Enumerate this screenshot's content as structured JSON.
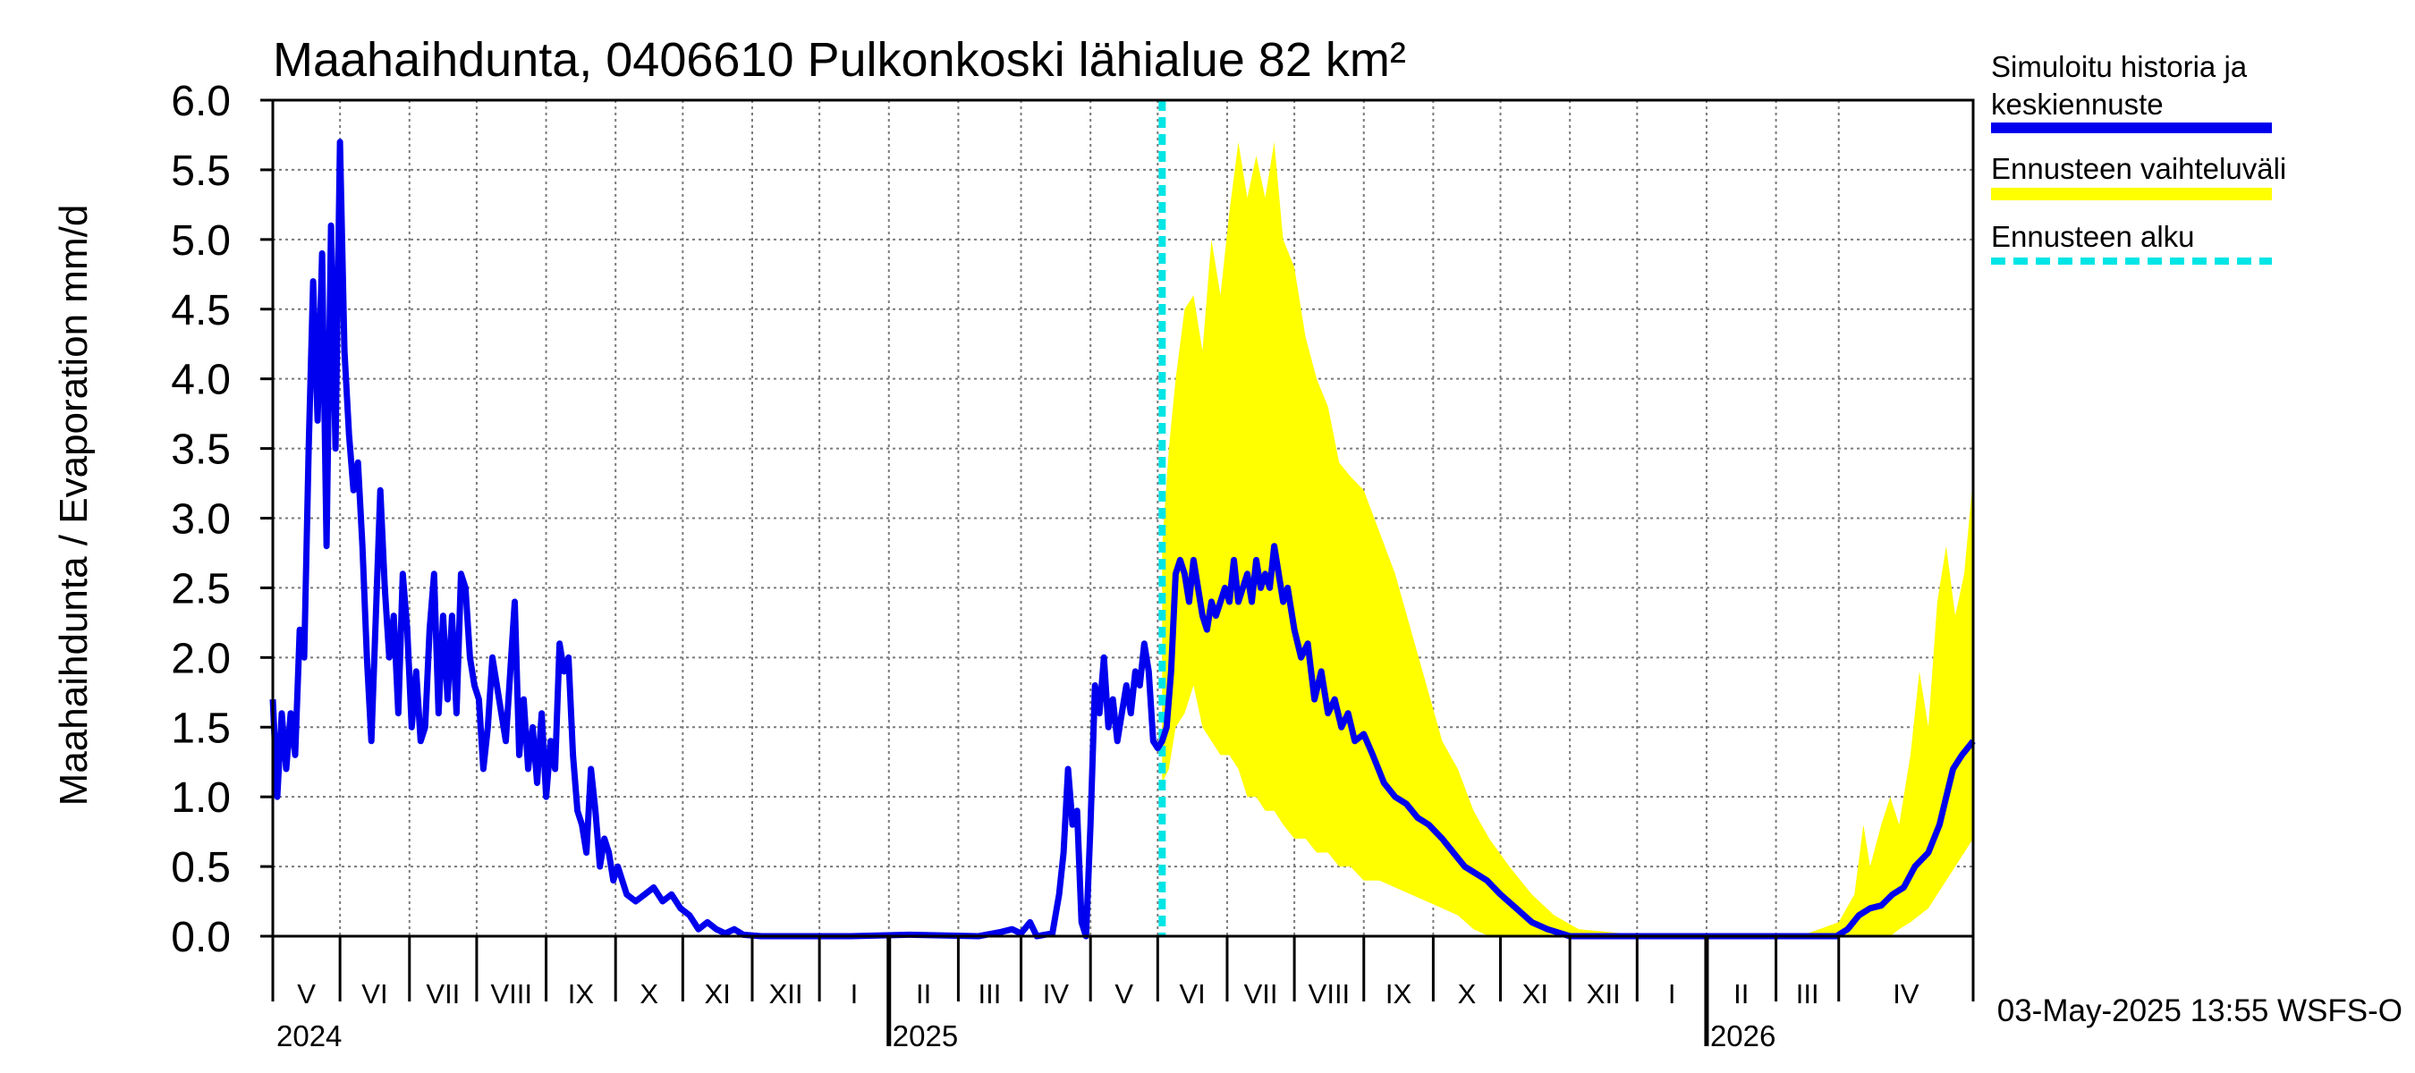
{
  "chart_data": {
    "type": "line",
    "title": "Maahaihdunta, 0406610 Pulkonkoski lähialue 82 km²",
    "ylabel": "Maahaihdunta / Evaporation   mm/d",
    "ylim": [
      0,
      6
    ],
    "yticks": [
      "0.0",
      "0.5",
      "1.0",
      "1.5",
      "2.0",
      "2.5",
      "3.0",
      "3.5",
      "4.0",
      "4.5",
      "5.0",
      "5.5",
      "6.0"
    ],
    "xlim": [
      "2024-04-01",
      "2026-04-30"
    ],
    "months": [
      "V",
      "VI",
      "VII",
      "VIII",
      "IX",
      "X",
      "XI",
      "XII",
      "I",
      "II",
      "III",
      "IV",
      "V",
      "VI",
      "VII",
      "VIII",
      "IX",
      "X",
      "XI",
      "XII",
      "I",
      "II",
      "III",
      "IV"
    ],
    "years": [
      "2024",
      "2025",
      "2026"
    ],
    "grid": true,
    "legend_placement": "right",
    "forecast_start": "2025-05-03",
    "series": [
      {
        "name": "Simuloitu historia ja keskiennuste",
        "color": "#0000ee",
        "points": [
          [
            "2024-04-01",
            1.7
          ],
          [
            "2024-04-03",
            1.0
          ],
          [
            "2024-04-05",
            1.6
          ],
          [
            "2024-04-07",
            1.2
          ],
          [
            "2024-04-09",
            1.6
          ],
          [
            "2024-04-11",
            1.3
          ],
          [
            "2024-04-13",
            2.2
          ],
          [
            "2024-04-15",
            2.0
          ],
          [
            "2024-04-17",
            3.5
          ],
          [
            "2024-04-19",
            4.7
          ],
          [
            "2024-04-21",
            3.7
          ],
          [
            "2024-04-23",
            4.9
          ],
          [
            "2024-04-25",
            2.8
          ],
          [
            "2024-04-27",
            5.1
          ],
          [
            "2024-04-29",
            3.5
          ],
          [
            "2024-05-01",
            5.7
          ],
          [
            "2024-05-03",
            4.2
          ],
          [
            "2024-05-05",
            3.6
          ],
          [
            "2024-05-07",
            3.2
          ],
          [
            "2024-05-09",
            3.4
          ],
          [
            "2024-05-11",
            2.8
          ],
          [
            "2024-05-13",
            2.0
          ],
          [
            "2024-05-15",
            1.4
          ],
          [
            "2024-05-17",
            2.3
          ],
          [
            "2024-05-19",
            3.2
          ],
          [
            "2024-05-21",
            2.5
          ],
          [
            "2024-05-23",
            2.0
          ],
          [
            "2024-05-25",
            2.3
          ],
          [
            "2024-05-27",
            1.6
          ],
          [
            "2024-05-29",
            2.6
          ],
          [
            "2024-05-31",
            2.2
          ],
          [
            "2024-06-02",
            1.5
          ],
          [
            "2024-06-04",
            1.9
          ],
          [
            "2024-06-06",
            1.4
          ],
          [
            "2024-06-08",
            1.5
          ],
          [
            "2024-06-10",
            2.2
          ],
          [
            "2024-06-12",
            2.6
          ],
          [
            "2024-06-14",
            1.6
          ],
          [
            "2024-06-16",
            2.3
          ],
          [
            "2024-06-18",
            1.7
          ],
          [
            "2024-06-20",
            2.3
          ],
          [
            "2024-06-22",
            1.6
          ],
          [
            "2024-06-24",
            2.6
          ],
          [
            "2024-06-26",
            2.5
          ],
          [
            "2024-06-28",
            2.0
          ],
          [
            "2024-06-30",
            1.8
          ],
          [
            "2024-07-02",
            1.7
          ],
          [
            "2024-07-04",
            1.2
          ],
          [
            "2024-07-06",
            1.5
          ],
          [
            "2024-07-08",
            2.0
          ],
          [
            "2024-07-10",
            1.8
          ],
          [
            "2024-07-12",
            1.6
          ],
          [
            "2024-07-14",
            1.4
          ],
          [
            "2024-07-16",
            1.9
          ],
          [
            "2024-07-18",
            2.4
          ],
          [
            "2024-07-20",
            1.3
          ],
          [
            "2024-07-22",
            1.7
          ],
          [
            "2024-07-24",
            1.2
          ],
          [
            "2024-07-26",
            1.5
          ],
          [
            "2024-07-28",
            1.1
          ],
          [
            "2024-07-30",
            1.6
          ],
          [
            "2024-08-01",
            1.0
          ],
          [
            "2024-08-03",
            1.4
          ],
          [
            "2024-08-05",
            1.2
          ],
          [
            "2024-08-07",
            2.1
          ],
          [
            "2024-08-09",
            1.9
          ],
          [
            "2024-08-11",
            2.0
          ],
          [
            "2024-08-13",
            1.3
          ],
          [
            "2024-08-15",
            0.9
          ],
          [
            "2024-08-17",
            0.8
          ],
          [
            "2024-08-19",
            0.6
          ],
          [
            "2024-08-21",
            1.2
          ],
          [
            "2024-08-23",
            0.9
          ],
          [
            "2024-08-25",
            0.5
          ],
          [
            "2024-08-27",
            0.7
          ],
          [
            "2024-08-29",
            0.6
          ],
          [
            "2024-08-31",
            0.4
          ],
          [
            "2024-09-02",
            0.5
          ],
          [
            "2024-09-06",
            0.3
          ],
          [
            "2024-09-10",
            0.25
          ],
          [
            "2024-09-14",
            0.3
          ],
          [
            "2024-09-18",
            0.35
          ],
          [
            "2024-09-22",
            0.25
          ],
          [
            "2024-09-26",
            0.3
          ],
          [
            "2024-09-30",
            0.2
          ],
          [
            "2024-10-04",
            0.15
          ],
          [
            "2024-10-08",
            0.05
          ],
          [
            "2024-10-12",
            0.1
          ],
          [
            "2024-10-16",
            0.05
          ],
          [
            "2024-10-20",
            0.02
          ],
          [
            "2024-10-24",
            0.05
          ],
          [
            "2024-10-28",
            0.01
          ],
          [
            "2024-11-05",
            0.0
          ],
          [
            "2024-12-15",
            0.0
          ],
          [
            "2025-01-10",
            0.01
          ],
          [
            "2025-02-10",
            0.0
          ],
          [
            "2025-02-20",
            0.03
          ],
          [
            "2025-02-25",
            0.05
          ],
          [
            "2025-03-01",
            0.02
          ],
          [
            "2025-03-05",
            0.1
          ],
          [
            "2025-03-08",
            0.0
          ],
          [
            "2025-03-15",
            0.02
          ],
          [
            "2025-03-18",
            0.3
          ],
          [
            "2025-03-20",
            0.6
          ],
          [
            "2025-03-22",
            1.2
          ],
          [
            "2025-03-24",
            0.8
          ],
          [
            "2025-03-26",
            0.9
          ],
          [
            "2025-03-28",
            0.1
          ],
          [
            "2025-03-30",
            0.0
          ],
          [
            "2025-04-01",
            0.8
          ],
          [
            "2025-04-03",
            1.8
          ],
          [
            "2025-04-05",
            1.6
          ],
          [
            "2025-04-07",
            2.0
          ],
          [
            "2025-04-09",
            1.5
          ],
          [
            "2025-04-11",
            1.7
          ],
          [
            "2025-04-13",
            1.4
          ],
          [
            "2025-04-15",
            1.6
          ],
          [
            "2025-04-17",
            1.8
          ],
          [
            "2025-04-19",
            1.6
          ],
          [
            "2025-04-21",
            1.9
          ],
          [
            "2025-04-23",
            1.8
          ],
          [
            "2025-04-25",
            2.1
          ],
          [
            "2025-04-27",
            1.9
          ],
          [
            "2025-04-29",
            1.4
          ],
          [
            "2025-05-01",
            1.35
          ],
          [
            "2025-05-03",
            1.4
          ],
          [
            "2025-05-05",
            1.5
          ],
          [
            "2025-05-07",
            1.9
          ],
          [
            "2025-05-09",
            2.6
          ],
          [
            "2025-05-11",
            2.7
          ],
          [
            "2025-05-13",
            2.6
          ],
          [
            "2025-05-15",
            2.4
          ],
          [
            "2025-05-17",
            2.7
          ],
          [
            "2025-05-19",
            2.5
          ],
          [
            "2025-05-21",
            2.3
          ],
          [
            "2025-05-23",
            2.2
          ],
          [
            "2025-05-25",
            2.4
          ],
          [
            "2025-05-27",
            2.3
          ],
          [
            "2025-05-29",
            2.4
          ],
          [
            "2025-05-31",
            2.5
          ],
          [
            "2025-06-02",
            2.4
          ],
          [
            "2025-06-04",
            2.7
          ],
          [
            "2025-06-06",
            2.4
          ],
          [
            "2025-06-08",
            2.5
          ],
          [
            "2025-06-10",
            2.6
          ],
          [
            "2025-06-12",
            2.4
          ],
          [
            "2025-06-14",
            2.7
          ],
          [
            "2025-06-16",
            2.5
          ],
          [
            "2025-06-18",
            2.6
          ],
          [
            "2025-06-20",
            2.5
          ],
          [
            "2025-06-22",
            2.8
          ],
          [
            "2025-06-24",
            2.6
          ],
          [
            "2025-06-26",
            2.4
          ],
          [
            "2025-06-28",
            2.5
          ],
          [
            "2025-07-01",
            2.2
          ],
          [
            "2025-07-04",
            2.0
          ],
          [
            "2025-07-07",
            2.1
          ],
          [
            "2025-07-10",
            1.7
          ],
          [
            "2025-07-13",
            1.9
          ],
          [
            "2025-07-16",
            1.6
          ],
          [
            "2025-07-19",
            1.7
          ],
          [
            "2025-07-22",
            1.5
          ],
          [
            "2025-07-25",
            1.6
          ],
          [
            "2025-07-28",
            1.4
          ],
          [
            "2025-08-01",
            1.45
          ],
          [
            "2025-08-05",
            1.3
          ],
          [
            "2025-08-10",
            1.1
          ],
          [
            "2025-08-15",
            1.0
          ],
          [
            "2025-08-20",
            0.95
          ],
          [
            "2025-08-25",
            0.85
          ],
          [
            "2025-08-30",
            0.8
          ],
          [
            "2025-09-05",
            0.7
          ],
          [
            "2025-09-10",
            0.6
          ],
          [
            "2025-09-15",
            0.5
          ],
          [
            "2025-09-20",
            0.45
          ],
          [
            "2025-09-25",
            0.4
          ],
          [
            "2025-10-01",
            0.3
          ],
          [
            "2025-10-08",
            0.2
          ],
          [
            "2025-10-15",
            0.1
          ],
          [
            "2025-10-22",
            0.05
          ],
          [
            "2025-11-01",
            0.0
          ],
          [
            "2026-02-28",
            0.0
          ],
          [
            "2026-03-05",
            0.05
          ],
          [
            "2026-03-10",
            0.15
          ],
          [
            "2026-03-15",
            0.2
          ],
          [
            "2026-03-20",
            0.22
          ],
          [
            "2026-03-25",
            0.3
          ],
          [
            "2026-03-30",
            0.35
          ],
          [
            "2026-04-04",
            0.5
          ],
          [
            "2026-04-10",
            0.6
          ],
          [
            "2026-04-15",
            0.8
          ],
          [
            "2026-04-18",
            1.0
          ],
          [
            "2026-04-21",
            1.2
          ],
          [
            "2026-04-25",
            1.3
          ],
          [
            "2026-04-30",
            1.4
          ]
        ]
      },
      {
        "name": "Ennusteen vaihteluväli",
        "color": "#ffff00",
        "band": [
          [
            "2025-05-03",
            1.1,
            2.8
          ],
          [
            "2025-05-06",
            1.2,
            3.5
          ],
          [
            "2025-05-09",
            1.5,
            4.0
          ],
          [
            "2025-05-13",
            1.6,
            4.5
          ],
          [
            "2025-05-17",
            1.8,
            4.6
          ],
          [
            "2025-05-21",
            1.5,
            4.2
          ],
          [
            "2025-05-25",
            1.4,
            5.0
          ],
          [
            "2025-05-29",
            1.3,
            4.6
          ],
          [
            "2025-06-02",
            1.3,
            5.2
          ],
          [
            "2025-06-06",
            1.2,
            5.7
          ],
          [
            "2025-06-10",
            1.0,
            5.3
          ],
          [
            "2025-06-14",
            1.0,
            5.6
          ],
          [
            "2025-06-18",
            0.9,
            5.3
          ],
          [
            "2025-06-22",
            0.9,
            5.7
          ],
          [
            "2025-06-26",
            0.8,
            5.0
          ],
          [
            "2025-07-01",
            0.7,
            4.8
          ],
          [
            "2025-07-06",
            0.7,
            4.3
          ],
          [
            "2025-07-11",
            0.6,
            4.0
          ],
          [
            "2025-07-16",
            0.6,
            3.8
          ],
          [
            "2025-07-21",
            0.5,
            3.4
          ],
          [
            "2025-07-26",
            0.5,
            3.3
          ],
          [
            "2025-08-01",
            0.4,
            3.2
          ],
          [
            "2025-08-08",
            0.4,
            2.9
          ],
          [
            "2025-08-15",
            0.35,
            2.6
          ],
          [
            "2025-08-22",
            0.3,
            2.2
          ],
          [
            "2025-08-29",
            0.25,
            1.8
          ],
          [
            "2025-09-05",
            0.2,
            1.4
          ],
          [
            "2025-09-12",
            0.15,
            1.2
          ],
          [
            "2025-09-19",
            0.05,
            0.9
          ],
          [
            "2025-09-26",
            0.0,
            0.7
          ],
          [
            "2025-10-05",
            0.0,
            0.5
          ],
          [
            "2025-10-15",
            0.0,
            0.3
          ],
          [
            "2025-10-25",
            0.0,
            0.15
          ],
          [
            "2025-11-05",
            0.0,
            0.05
          ],
          [
            "2025-12-01",
            0.0,
            0.01
          ],
          [
            "2026-02-15",
            0.0,
            0.02
          ],
          [
            "2026-03-01",
            0.0,
            0.1
          ],
          [
            "2026-03-08",
            0.0,
            0.3
          ],
          [
            "2026-03-12",
            0.0,
            0.8
          ],
          [
            "2026-03-15",
            0.0,
            0.5
          ],
          [
            "2026-03-20",
            0.0,
            0.8
          ],
          [
            "2026-03-24",
            0.0,
            1.0
          ],
          [
            "2026-03-28",
            0.05,
            0.8
          ],
          [
            "2026-04-02",
            0.1,
            1.3
          ],
          [
            "2026-04-06",
            0.15,
            1.9
          ],
          [
            "2026-04-10",
            0.2,
            1.5
          ],
          [
            "2026-04-14",
            0.3,
            2.4
          ],
          [
            "2026-04-18",
            0.4,
            2.8
          ],
          [
            "2026-04-22",
            0.5,
            2.3
          ],
          [
            "2026-04-26",
            0.6,
            2.6
          ],
          [
            "2026-04-30",
            0.7,
            3.3
          ]
        ]
      },
      {
        "name": "Ennusteen alku",
        "color": "#00e5e5"
      }
    ],
    "legend": [
      {
        "label": "Simuloitu historia ja",
        "label2": "keskiennuste"
      },
      {
        "label": "Ennusteen vaihteluväli"
      },
      {
        "label": "Ennusteen alku"
      }
    ],
    "footer": "03-May-2025 13:55 WSFS-O"
  }
}
